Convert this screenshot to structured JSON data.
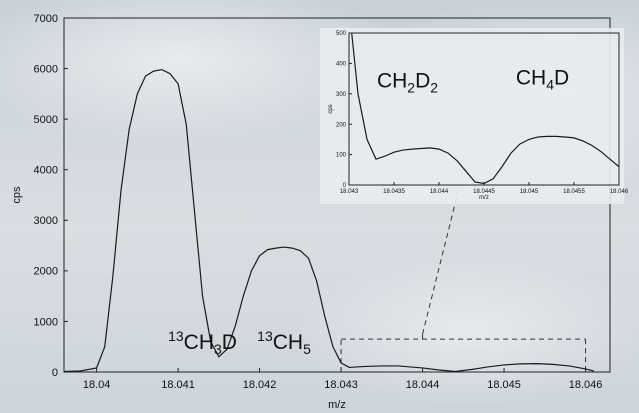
{
  "chart_data": [
    {
      "id": "main",
      "type": "line",
      "xlabel": "m/z",
      "ylabel": "cps",
      "xlim": [
        18.0396,
        18.0463
      ],
      "ylim": [
        0,
        7000
      ],
      "xticks": [
        18.04,
        18.041,
        18.042,
        18.043,
        18.044,
        18.045,
        18.046
      ],
      "xtick_labels": [
        "18.04",
        "18.041",
        "18.042",
        "18.043",
        "18.044",
        "18.045",
        "18.046"
      ],
      "yticks": [
        0,
        1000,
        2000,
        3000,
        4000,
        5000,
        6000,
        7000
      ],
      "ytick_labels": [
        "0",
        "1000",
        "2000",
        "3000",
        "4000",
        "5000",
        "6000",
        "7000"
      ],
      "grid": false,
      "series": [
        {
          "x": [
            18.0396,
            18.0398,
            18.04,
            18.0401,
            18.0402,
            18.0403,
            18.0404,
            18.0405,
            18.0406,
            18.0407,
            18.0408,
            18.0409,
            18.041,
            18.0411,
            18.0412,
            18.0413,
            18.0414,
            18.0415,
            18.0416,
            18.0417,
            18.0418,
            18.0419,
            18.042,
            18.0421,
            18.0422,
            18.0423,
            18.0424,
            18.0425,
            18.0426,
            18.0427,
            18.0428,
            18.0429,
            18.043,
            18.0431,
            18.0433,
            18.0435,
            18.0437,
            18.044,
            18.0442,
            18.0444,
            18.0446,
            18.0448,
            18.045,
            18.0452,
            18.0454,
            18.0456,
            18.0458,
            18.046,
            18.0461
          ],
          "y": [
            10,
            20,
            80,
            500,
            1900,
            3600,
            4800,
            5500,
            5850,
            5950,
            5980,
            5900,
            5700,
            4900,
            3200,
            1500,
            600,
            300,
            450,
            900,
            1500,
            2000,
            2300,
            2420,
            2450,
            2470,
            2450,
            2400,
            2250,
            1800,
            1100,
            500,
            180,
            90,
            110,
            120,
            120,
            80,
            40,
            10,
            50,
            100,
            140,
            160,
            165,
            150,
            120,
            60,
            20
          ]
        }
      ],
      "annotations": [
        {
          "sup": "13",
          "base": "CH",
          "sub": "3",
          "tail": "D",
          "x": 18.0413,
          "y": 450
        },
        {
          "sup": "13",
          "base": "CH",
          "sub": "5",
          "tail": "",
          "x": 18.0423,
          "y": 450
        }
      ],
      "zoom_region": {
        "x": [
          18.043,
          18.046
        ],
        "y": [
          0,
          650
        ]
      }
    },
    {
      "id": "inset",
      "type": "line",
      "xlabel": "m/z",
      "ylabel": "cps",
      "xlim": [
        18.043,
        18.046
      ],
      "ylim": [
        0,
        500
      ],
      "xticks": [
        18.043,
        18.0435,
        18.044,
        18.0445,
        18.045,
        18.0455,
        18.046
      ],
      "xtick_labels": [
        "18.043",
        "18.0435",
        "18.044",
        "18.0445",
        "18.045",
        "18.0455",
        "18.046"
      ],
      "yticks": [
        0,
        100,
        200,
        300,
        400,
        500
      ],
      "ytick_labels": [
        "0",
        "100",
        "200",
        "300",
        "400",
        "500"
      ],
      "grid": false,
      "series": [
        {
          "x": [
            18.04303,
            18.0431,
            18.0432,
            18.0433,
            18.0434,
            18.0435,
            18.0436,
            18.0437,
            18.0438,
            18.0439,
            18.044,
            18.0441,
            18.0442,
            18.0443,
            18.0444,
            18.0445,
            18.0446,
            18.0447,
            18.0448,
            18.0449,
            18.045,
            18.0451,
            18.0452,
            18.0453,
            18.0454,
            18.0455,
            18.0456,
            18.0457,
            18.0458,
            18.0459,
            18.046
          ],
          "y": [
            500,
            300,
            150,
            85,
            95,
            108,
            115,
            118,
            120,
            122,
            118,
            105,
            80,
            45,
            10,
            5,
            20,
            60,
            105,
            135,
            150,
            158,
            160,
            160,
            158,
            155,
            145,
            130,
            110,
            85,
            60
          ]
        }
      ],
      "annotations": [
        {
          "base": "CH",
          "sub": "2",
          "tail": "D",
          "sub2": "2",
          "x": 18.04365,
          "y": 320
        },
        {
          "base": "CH",
          "sub": "4",
          "tail": "D",
          "sub2": "",
          "x": 18.04515,
          "y": 330
        }
      ]
    }
  ]
}
